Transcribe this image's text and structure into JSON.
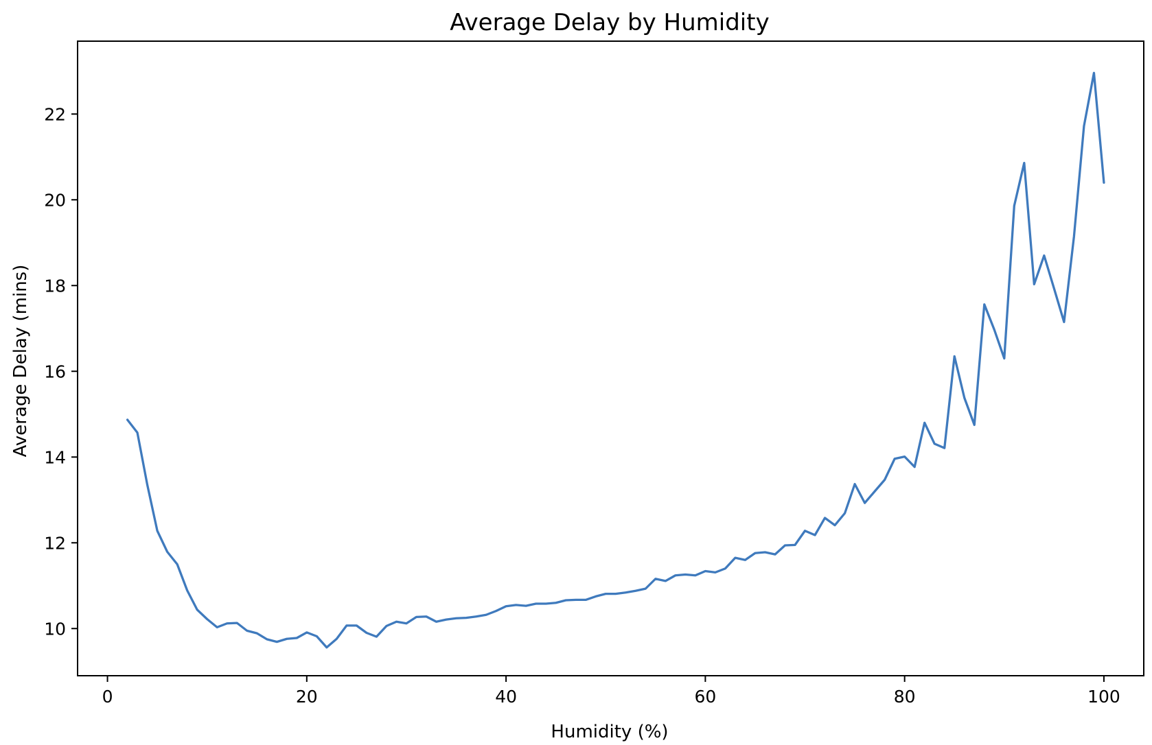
{
  "chart_data": {
    "type": "line",
    "title": "Average Delay by Humidity",
    "xlabel": "Humidity (%)",
    "ylabel": "Average Delay (mins)",
    "xlim": [
      -3,
      104
    ],
    "ylim": [
      8.9,
      23.7
    ],
    "xticks": [
      0,
      20,
      40,
      60,
      80,
      100
    ],
    "yticks": [
      10,
      12,
      14,
      16,
      18,
      20,
      22
    ],
    "grid": false,
    "colors": {
      "series": "#3f7abd"
    },
    "series": [
      {
        "x": [
          2,
          3,
          4,
          5,
          6,
          7,
          8,
          9,
          10,
          11,
          12,
          13,
          14,
          15,
          16,
          17,
          18,
          19,
          20,
          21,
          22,
          23,
          24,
          25,
          26,
          27,
          28,
          29,
          30,
          31,
          32,
          33,
          34,
          35,
          36,
          37,
          38,
          39,
          40,
          41,
          42,
          43,
          44,
          45,
          46,
          47,
          48,
          49,
          50,
          51,
          52,
          53,
          54,
          55,
          56,
          57,
          58,
          59,
          60,
          61,
          62,
          63,
          64,
          65,
          66,
          67,
          68,
          69,
          70,
          71,
          72,
          73,
          74,
          75,
          76,
          77,
          78,
          79,
          80,
          81,
          82,
          83,
          84,
          85,
          86,
          87,
          88,
          89,
          90,
          91,
          92,
          93,
          94,
          95,
          96,
          97,
          98,
          99,
          100
        ],
        "values": [
          14.87,
          14.57,
          13.35,
          12.28,
          11.79,
          11.5,
          10.89,
          10.44,
          10.22,
          10.03,
          10.12,
          10.13,
          9.95,
          9.89,
          9.75,
          9.69,
          9.76,
          9.78,
          9.91,
          9.82,
          9.56,
          9.76,
          10.07,
          10.07,
          9.9,
          9.81,
          10.06,
          10.16,
          10.12,
          10.27,
          10.28,
          10.16,
          10.21,
          10.24,
          10.25,
          10.28,
          10.32,
          10.41,
          10.52,
          10.55,
          10.53,
          10.58,
          10.58,
          10.6,
          10.66,
          10.67,
          10.67,
          10.75,
          10.81,
          10.81,
          10.84,
          10.88,
          10.93,
          11.16,
          11.11,
          11.24,
          11.26,
          11.24,
          11.34,
          11.31,
          11.4,
          11.65,
          11.6,
          11.76,
          11.78,
          11.73,
          11.94,
          11.95,
          12.28,
          12.18,
          12.58,
          12.41,
          12.69,
          13.37,
          12.93,
          13.2,
          13.47,
          13.96,
          14.01,
          13.77,
          14.8,
          14.31,
          14.21,
          16.35,
          15.38,
          14.75,
          17.56,
          16.97,
          16.3,
          19.86,
          20.86,
          18.03,
          18.7,
          17.93,
          17.15,
          19.15,
          21.72,
          22.96,
          20.4
        ]
      }
    ]
  }
}
